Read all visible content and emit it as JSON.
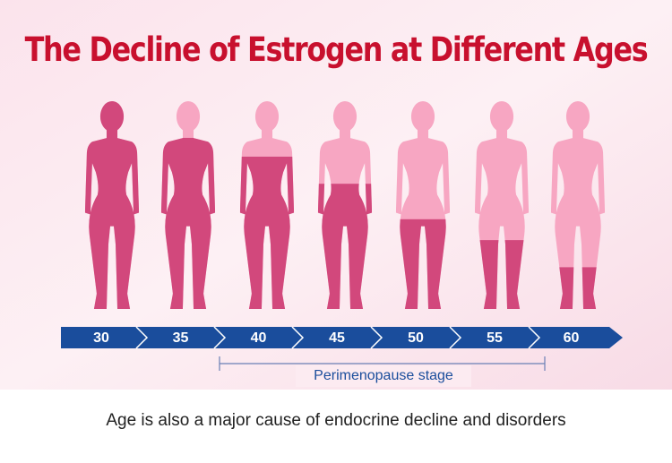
{
  "header": {
    "title": "The Decline of Estrogen at Different Ages"
  },
  "figures": [
    {
      "age": "30",
      "estrogen_level": 100
    },
    {
      "age": "35",
      "estrogen_level": 82
    },
    {
      "age": "40",
      "estrogen_level": 73
    },
    {
      "age": "45",
      "estrogen_level": 60
    },
    {
      "age": "50",
      "estrogen_level": 43
    },
    {
      "age": "55",
      "estrogen_level": 33
    },
    {
      "age": "60",
      "estrogen_level": 20
    }
  ],
  "stage": {
    "label": "Perimenopause stage"
  },
  "caption": "Age is also a major cause of endocrine decline and disorders"
}
